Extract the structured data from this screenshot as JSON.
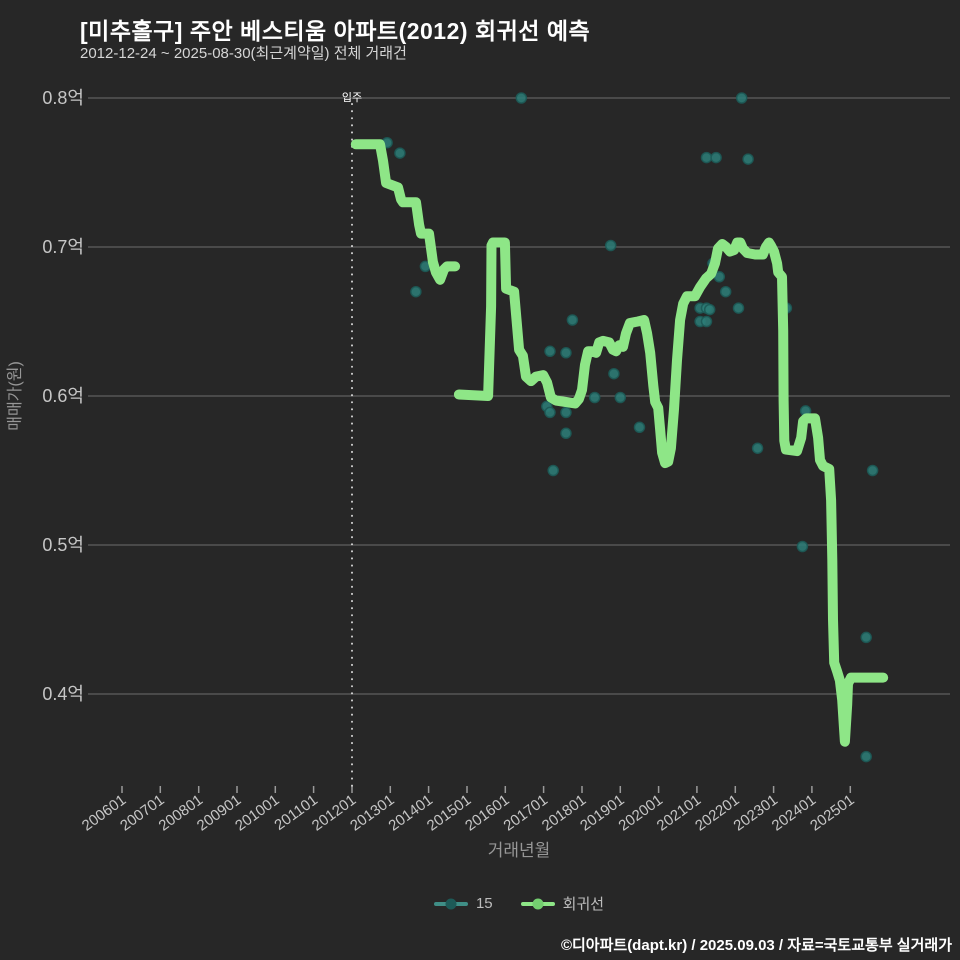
{
  "header": {
    "title": "[미추홀구] 주안 베스티움 아파트(2012) 회귀선 예측",
    "subtitle": "2012-12-24 ~ 2025-08-30(최근계약일) 전체 거래건"
  },
  "footer": {
    "credit": "©디아파트(dapt.kr) / 2025.09.03 / 자료=국토교통부 실거래가"
  },
  "legend": {
    "series1": "15",
    "series2": "회귀선"
  },
  "annotation": {
    "vline_date": "201201",
    "vline_label": "입주"
  },
  "colors": {
    "background": "#272727",
    "grid": "#6d6d6d",
    "tick": "#9a9a9a",
    "tick_text": "#c6c6c6",
    "axis_title": "#979797",
    "title_text": "#ffffff",
    "subtitle_text": "#d6d6d6",
    "legend_text": "#bdbdbd",
    "footer_text": "#ffffff",
    "vline": "#d4d4d4",
    "vline_label": "#ffffff",
    "regression": "#8ee687",
    "scatter": "#2e7d78",
    "scatter_edge": "#1d5a57",
    "legend_scatter_line": "#3f8e86"
  },
  "chart_data": {
    "type": "line",
    "title": "[미추홀구] 주안 베스티움 아파트(2012) 회귀선 예측",
    "xlabel": "거래년월",
    "ylabel": "매매가(원)",
    "x_tick_labels": [
      "200601",
      "200701",
      "200801",
      "200901",
      "201001",
      "201101",
      "201201",
      "201301",
      "201401",
      "201501",
      "201601",
      "201701",
      "201801",
      "201901",
      "202001",
      "202101",
      "202201",
      "202301",
      "202401",
      "202501"
    ],
    "y_tick_labels": [
      "0.8억",
      "0.7억",
      "0.6억",
      "0.5억",
      "0.4억"
    ],
    "ylim": [
      0.34,
      0.81
    ],
    "xlim": [
      "200511",
      "202708"
    ],
    "grid": true,
    "legend_position": "bottom",
    "series": [
      {
        "name": "15",
        "type": "scatter",
        "points": [
          [
            "201212",
            0.77
          ],
          [
            "201304",
            0.763
          ],
          [
            "201309",
            0.67
          ],
          [
            "201312",
            0.687
          ],
          [
            "201606",
            0.8
          ],
          [
            "202203",
            0.8
          ],
          [
            "202104",
            0.76
          ],
          [
            "202107",
            0.76
          ],
          [
            "202205",
            0.759
          ],
          [
            "201810",
            0.701
          ],
          [
            "201710",
            0.651
          ],
          [
            "201703",
            0.63
          ],
          [
            "201708",
            0.629
          ],
          [
            "201811",
            0.615
          ],
          [
            "201805",
            0.599
          ],
          [
            "201901",
            0.599
          ],
          [
            "201702",
            0.593
          ],
          [
            "201703",
            0.589
          ],
          [
            "201708",
            0.589
          ],
          [
            "201708",
            0.575
          ],
          [
            "201704",
            0.55
          ],
          [
            "201907",
            0.579
          ],
          [
            "202102",
            0.659
          ],
          [
            "202104",
            0.659
          ],
          [
            "202105",
            0.658
          ],
          [
            "202102",
            0.65
          ],
          [
            "202104",
            0.65
          ],
          [
            "202110",
            0.67
          ],
          [
            "202202",
            0.659
          ],
          [
            "202305",
            0.659
          ],
          [
            "202106",
            0.689
          ],
          [
            "202108",
            0.68
          ],
          [
            "202208",
            0.565
          ],
          [
            "202310",
            0.499
          ],
          [
            "202311",
            0.59
          ],
          [
            "202508",
            0.55
          ],
          [
            "202506",
            0.438
          ],
          [
            "202506",
            0.358
          ]
        ]
      },
      {
        "name": "회귀선",
        "type": "line",
        "segments": [
          [
            [
              2012.1,
              0.769
            ],
            [
              2012.73,
              0.769
            ],
            [
              2012.81,
              0.758
            ],
            [
              2012.89,
              0.743
            ],
            [
              2013.2,
              0.74
            ],
            [
              2013.28,
              0.732
            ],
            [
              2013.33,
              0.73
            ],
            [
              2013.67,
              0.73
            ],
            [
              2013.75,
              0.715
            ],
            [
              2013.8,
              0.709
            ],
            [
              2014.01,
              0.709
            ],
            [
              2014.11,
              0.69
            ],
            [
              2014.19,
              0.683
            ],
            [
              2014.3,
              0.678
            ],
            [
              2014.4,
              0.685
            ],
            [
              2014.48,
              0.687
            ],
            [
              2014.69,
              0.687
            ]
          ],
          [
            [
              2014.79,
              0.601
            ],
            [
              2015.55,
              0.6
            ],
            [
              2015.63,
              0.66
            ],
            [
              2015.64,
              0.701
            ],
            [
              2015.68,
              0.703
            ],
            [
              2015.99,
              0.703
            ],
            [
              2016.02,
              0.672
            ],
            [
              2016.23,
              0.67
            ],
            [
              2016.36,
              0.631
            ],
            [
              2016.46,
              0.627
            ],
            [
              2016.54,
              0.613
            ],
            [
              2016.67,
              0.61
            ],
            [
              2016.8,
              0.613
            ],
            [
              2016.99,
              0.614
            ],
            [
              2017.09,
              0.609
            ],
            [
              2017.19,
              0.599
            ],
            [
              2017.32,
              0.597
            ],
            [
              2017.58,
              0.596
            ],
            [
              2017.82,
              0.595
            ],
            [
              2017.92,
              0.598
            ],
            [
              2018.0,
              0.604
            ],
            [
              2018.08,
              0.621
            ],
            [
              2018.16,
              0.63
            ],
            [
              2018.26,
              0.63
            ],
            [
              2018.37,
              0.629
            ],
            [
              2018.45,
              0.636
            ],
            [
              2018.55,
              0.637
            ],
            [
              2018.71,
              0.636
            ],
            [
              2018.81,
              0.631
            ],
            [
              2018.89,
              0.63
            ],
            [
              2018.97,
              0.634
            ],
            [
              2019.07,
              0.633
            ],
            [
              2019.15,
              0.642
            ],
            [
              2019.25,
              0.649
            ],
            [
              2019.46,
              0.65
            ],
            [
              2019.62,
              0.651
            ],
            [
              2019.7,
              0.642
            ],
            [
              2019.78,
              0.629
            ],
            [
              2019.86,
              0.607
            ],
            [
              2019.91,
              0.596
            ],
            [
              2019.99,
              0.592
            ],
            [
              2020.04,
              0.577
            ],
            [
              2020.09,
              0.562
            ],
            [
              2020.17,
              0.555
            ],
            [
              2020.25,
              0.556
            ],
            [
              2020.32,
              0.565
            ],
            [
              2020.4,
              0.591
            ],
            [
              2020.48,
              0.624
            ],
            [
              2020.56,
              0.651
            ],
            [
              2020.64,
              0.662
            ],
            [
              2020.74,
              0.667
            ],
            [
              2020.95,
              0.667
            ],
            [
              2021.08,
              0.673
            ],
            [
              2021.24,
              0.679
            ],
            [
              2021.37,
              0.682
            ],
            [
              2021.47,
              0.689
            ],
            [
              2021.55,
              0.699
            ],
            [
              2021.66,
              0.702
            ],
            [
              2021.76,
              0.7
            ],
            [
              2021.86,
              0.697
            ],
            [
              2021.97,
              0.698
            ],
            [
              2022.05,
              0.703
            ],
            [
              2022.13,
              0.703
            ],
            [
              2022.2,
              0.699
            ],
            [
              2022.31,
              0.696
            ],
            [
              2022.52,
              0.695
            ],
            [
              2022.72,
              0.695
            ],
            [
              2022.8,
              0.7
            ],
            [
              2022.88,
              0.703
            ],
            [
              2022.93,
              0.701
            ],
            [
              2023.01,
              0.697
            ],
            [
              2023.09,
              0.689
            ],
            [
              2023.12,
              0.683
            ],
            [
              2023.22,
              0.68
            ],
            [
              2023.25,
              0.644
            ],
            [
              2023.26,
              0.597
            ],
            [
              2023.28,
              0.57
            ],
            [
              2023.32,
              0.564
            ],
            [
              2023.61,
              0.563
            ],
            [
              2023.72,
              0.572
            ],
            [
              2023.77,
              0.583
            ],
            [
              2023.85,
              0.585
            ],
            [
              2024.08,
              0.585
            ],
            [
              2024.16,
              0.572
            ],
            [
              2024.21,
              0.557
            ],
            [
              2024.29,
              0.553
            ],
            [
              2024.45,
              0.551
            ],
            [
              2024.5,
              0.53
            ],
            [
              2024.53,
              0.49
            ],
            [
              2024.55,
              0.45
            ],
            [
              2024.58,
              0.421
            ],
            [
              2024.66,
              0.415
            ],
            [
              2024.73,
              0.409
            ],
            [
              2024.79,
              0.396
            ],
            [
              2024.84,
              0.376
            ],
            [
              2024.86,
              0.368
            ],
            [
              2024.92,
              0.393
            ],
            [
              2024.94,
              0.407
            ],
            [
              2025.02,
              0.411
            ],
            [
              2025.86,
              0.411
            ]
          ]
        ]
      }
    ]
  }
}
